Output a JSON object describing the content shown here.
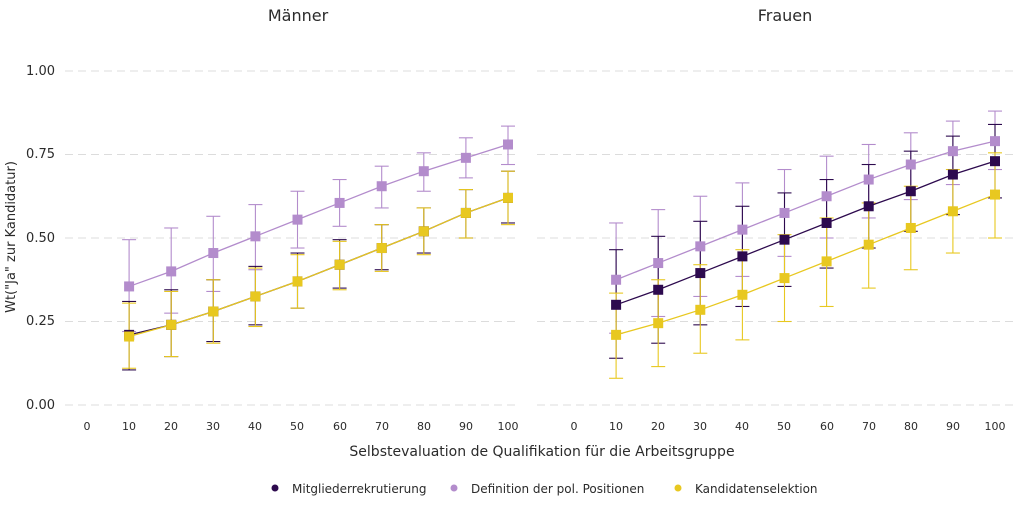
{
  "chart_data": {
    "type": "line",
    "panel_titles": [
      "Männer",
      "Frauen"
    ],
    "xlabel": "Selbstevaluation de Qualifikation für die Arbeitsgruppe",
    "ylabel": "Wt(\"Ja\" zur Kandidatur)",
    "x_ticks": [
      "0",
      "10",
      "20",
      "30",
      "40",
      "50",
      "60",
      "70",
      "80",
      "90",
      "100"
    ],
    "y_ticks": [
      "0.00",
      "0.25",
      "0.50",
      "0.75",
      "1.00"
    ],
    "ylim": [
      0,
      1
    ],
    "xlim": [
      0,
      100
    ],
    "grid": "horizontal dashed",
    "legend_position": "bottom",
    "colors": {
      "Mitgliederrekrutierung": "#2d0a4e",
      "Definition der pol. Positionen": "#b38ccc",
      "Kandidatenselektion": "#e8c820"
    },
    "panels": [
      {
        "title": "Männer",
        "series": [
          {
            "name": "Mitgliederrekrutierung",
            "x": [
              10,
              20,
              30,
              40,
              50,
              60,
              70,
              80,
              90,
              100
            ],
            "y": [
              0.21,
              0.24,
              0.28,
              0.325,
              0.37,
              0.42,
              0.47,
              0.52,
              0.575,
              0.62
            ],
            "lower": [
              0.105,
              0.145,
              0.19,
              0.24,
              0.29,
              0.35,
              0.405,
              0.455,
              0.5,
              0.545
            ],
            "upper": [
              0.31,
              0.345,
              0.375,
              0.415,
              0.455,
              0.495,
              0.54,
              0.59,
              0.645,
              0.7
            ]
          },
          {
            "name": "Definition der pol. Positionen",
            "x": [
              10,
              20,
              30,
              40,
              50,
              60,
              70,
              80,
              90,
              100
            ],
            "y": [
              0.355,
              0.4,
              0.455,
              0.505,
              0.555,
              0.605,
              0.655,
              0.7,
              0.74,
              0.78
            ],
            "lower": [
              0.22,
              0.275,
              0.34,
              0.405,
              0.47,
              0.535,
              0.59,
              0.64,
              0.68,
              0.72
            ],
            "upper": [
              0.495,
              0.53,
              0.565,
              0.6,
              0.64,
              0.675,
              0.715,
              0.755,
              0.8,
              0.835
            ]
          },
          {
            "name": "Kandidatenselektion",
            "x": [
              10,
              20,
              30,
              40,
              50,
              60,
              70,
              80,
              90,
              100
            ],
            "y": [
              0.205,
              0.24,
              0.28,
              0.325,
              0.37,
              0.42,
              0.47,
              0.52,
              0.575,
              0.62
            ],
            "lower": [
              0.11,
              0.145,
              0.185,
              0.235,
              0.29,
              0.345,
              0.4,
              0.45,
              0.5,
              0.54
            ],
            "upper": [
              0.305,
              0.34,
              0.375,
              0.41,
              0.45,
              0.49,
              0.54,
              0.59,
              0.645,
              0.7
            ]
          }
        ]
      },
      {
        "title": "Frauen",
        "series": [
          {
            "name": "Mitgliederrekrutierung",
            "x": [
              10,
              20,
              30,
              40,
              50,
              60,
              70,
              80,
              90,
              100
            ],
            "y": [
              0.3,
              0.345,
              0.395,
              0.445,
              0.495,
              0.545,
              0.595,
              0.64,
              0.69,
              0.73
            ],
            "lower": [
              0.14,
              0.185,
              0.24,
              0.295,
              0.355,
              0.41,
              0.47,
              0.52,
              0.57,
              0.62
            ],
            "upper": [
              0.465,
              0.505,
              0.55,
              0.595,
              0.635,
              0.675,
              0.72,
              0.76,
              0.805,
              0.84
            ]
          },
          {
            "name": "Definition der pol. Positionen",
            "x": [
              10,
              20,
              30,
              40,
              50,
              60,
              70,
              80,
              90,
              100
            ],
            "y": [
              0.375,
              0.425,
              0.475,
              0.525,
              0.575,
              0.625,
              0.675,
              0.72,
              0.76,
              0.79
            ],
            "lower": [
              0.215,
              0.265,
              0.325,
              0.385,
              0.445,
              0.5,
              0.56,
              0.615,
              0.66,
              0.705
            ],
            "upper": [
              0.545,
              0.585,
              0.625,
              0.665,
              0.705,
              0.745,
              0.78,
              0.815,
              0.85,
              0.88
            ]
          },
          {
            "name": "Kandidatenselektion",
            "x": [
              10,
              20,
              30,
              40,
              50,
              60,
              70,
              80,
              90,
              100
            ],
            "y": [
              0.21,
              0.245,
              0.285,
              0.33,
              0.38,
              0.43,
              0.48,
              0.53,
              0.58,
              0.63
            ],
            "lower": [
              0.08,
              0.115,
              0.155,
              0.195,
              0.25,
              0.295,
              0.35,
              0.405,
              0.455,
              0.5
            ],
            "upper": [
              0.335,
              0.375,
              0.42,
              0.465,
              0.51,
              0.56,
              0.605,
              0.655,
              0.705,
              0.755
            ]
          }
        ]
      }
    ]
  }
}
